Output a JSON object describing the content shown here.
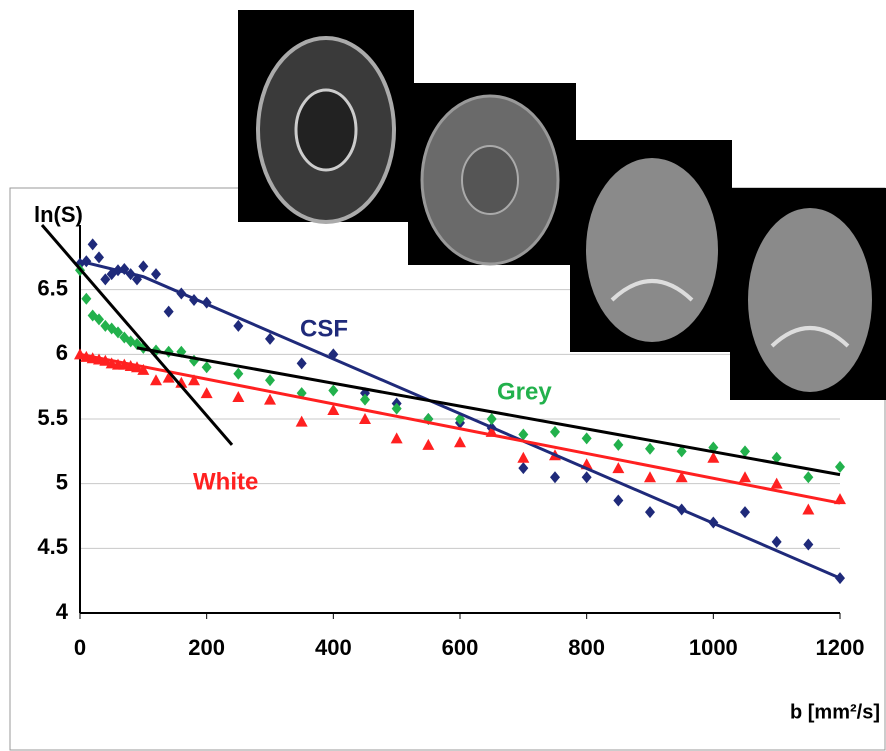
{
  "chart_data": {
    "type": "scatter",
    "y_label": "ln(S)",
    "x_label": "b [mm²/s]",
    "xlim": [
      0,
      1200
    ],
    "ylim": [
      4,
      7
    ],
    "xticks": [
      0,
      200,
      400,
      600,
      800,
      1000,
      1200
    ],
    "yticks": [
      4,
      4.5,
      5,
      5.5,
      6,
      6.5
    ],
    "grid": true,
    "x": [
      0,
      10,
      20,
      30,
      40,
      50,
      60,
      70,
      80,
      90,
      100,
      120,
      140,
      160,
      180,
      200,
      250,
      300,
      350,
      400,
      450,
      500,
      550,
      600,
      650,
      700,
      750,
      800,
      850,
      900,
      950,
      1000,
      1050,
      1100,
      1150,
      1200
    ],
    "series": [
      {
        "name": "CSF",
        "color": "#1f2a7a",
        "marker": "diamond",
        "values": [
          6.7,
          6.72,
          6.85,
          6.75,
          6.58,
          6.62,
          6.65,
          6.66,
          6.62,
          6.58,
          6.68,
          6.62,
          6.33,
          6.47,
          6.42,
          6.4,
          6.22,
          6.12,
          5.93,
          6.0,
          5.7,
          5.62,
          5.5,
          5.47,
          5.43,
          5.12,
          5.05,
          5.05,
          4.87,
          4.78,
          4.8,
          4.7,
          4.78,
          4.55,
          4.53,
          4.27
        ]
      },
      {
        "name": "Grey",
        "color": "#22b14c",
        "marker": "diamond",
        "values": [
          6.65,
          6.43,
          6.3,
          6.27,
          6.22,
          6.2,
          6.17,
          6.13,
          6.1,
          6.08,
          6.05,
          6.03,
          6.02,
          6.02,
          5.95,
          5.9,
          5.85,
          5.8,
          5.7,
          5.72,
          5.65,
          5.58,
          5.5,
          5.5,
          5.5,
          5.38,
          5.4,
          5.35,
          5.3,
          5.27,
          5.25,
          5.28,
          5.25,
          5.2,
          5.05,
          5.13
        ]
      },
      {
        "name": "White",
        "color": "#ff2020",
        "marker": "triangle",
        "values": [
          6.0,
          5.98,
          5.97,
          5.96,
          5.95,
          5.93,
          5.92,
          5.92,
          5.91,
          5.9,
          5.88,
          5.8,
          5.82,
          5.78,
          5.8,
          5.7,
          5.67,
          5.65,
          5.48,
          5.57,
          5.5,
          5.35,
          5.3,
          5.32,
          5.4,
          5.2,
          5.22,
          5.15,
          5.12,
          5.05,
          5.05,
          5.2,
          5.05,
          5.0,
          4.8,
          4.88
        ]
      }
    ],
    "fit_lines": [
      {
        "color": "#1f2a7a",
        "x": [
          0,
          100,
          1200
        ],
        "y": [
          6.72,
          6.6,
          4.27
        ]
      },
      {
        "color": "#ff2020",
        "x": [
          0,
          1200
        ],
        "y": [
          6.0,
          4.85
        ]
      },
      {
        "color": "#000000",
        "x": [
          90,
          1200
        ],
        "y": [
          6.05,
          5.07
        ]
      },
      {
        "color": "#000000",
        "x": [
          -60,
          240
        ],
        "y": [
          7.0,
          5.3
        ]
      }
    ]
  }
}
